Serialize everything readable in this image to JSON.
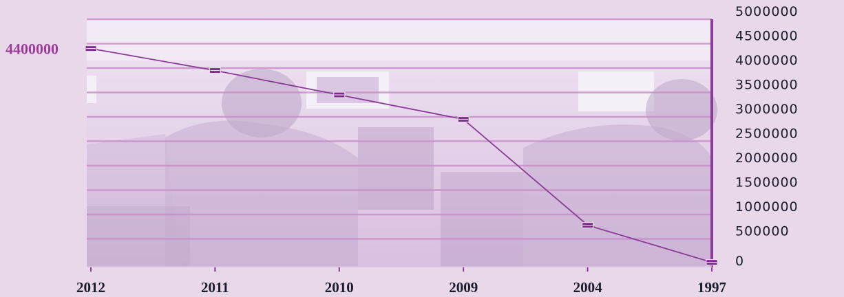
{
  "chart_data": {
    "type": "line",
    "categories": [
      "2012",
      "2011",
      "2010",
      "2009",
      "2004",
      "1997"
    ],
    "values": [
      4400000,
      3950000,
      3450000,
      2950000,
      780000,
      20000
    ],
    "y_ticks": [
      "5000000",
      "4500000",
      "4000000",
      "3500000",
      "3000000",
      "2500000",
      "2000000",
      "1500000",
      "1000000",
      "500000",
      "0"
    ],
    "ylim": [
      0,
      5000000
    ],
    "y_axis_side": "right",
    "grid": true,
    "callout": {
      "label": "4400000",
      "value": 4400000
    },
    "colors": {
      "line": "#8a3a97",
      "marker": "#7a2a8a",
      "callout": "#9b3e98",
      "grid": "#c98fc8",
      "axis": "#8a3a97",
      "text": "#1b1b2e"
    },
    "background_image": "photo-soldiers-at-computers"
  }
}
